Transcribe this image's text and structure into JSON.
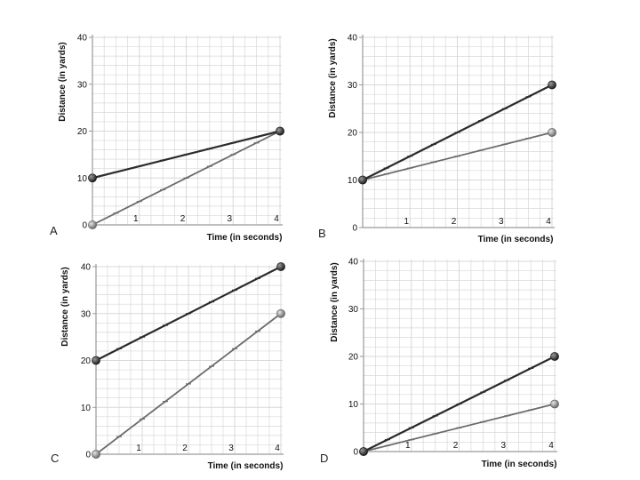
{
  "colors": {
    "grid": "#d8d8d8",
    "axis": "#9a9a9a",
    "dark_line": "#2b2b2b",
    "light_line": "#6b6b6b",
    "text": "#111111"
  },
  "chart_data": [
    {
      "panel_label": "A",
      "type": "line",
      "xlabel": "Time (in seconds)",
      "ylabel": "Distance (in yards)",
      "xlim": [
        0,
        4
      ],
      "ylim": [
        0,
        40
      ],
      "xticks": [
        "1",
        "2",
        "3",
        "4"
      ],
      "yticks": [
        "0",
        "10",
        "20",
        "30",
        "40"
      ],
      "series": [
        {
          "name": "dark",
          "tone": "dark",
          "x": [
            0,
            4
          ],
          "y": [
            10,
            20
          ]
        },
        {
          "name": "light",
          "tone": "light",
          "x": [
            0,
            4
          ],
          "y": [
            0,
            20
          ]
        }
      ]
    },
    {
      "panel_label": "B",
      "type": "line",
      "xlabel": "Time (in seconds)",
      "ylabel": "Distance (in yards)",
      "xlim": [
        0,
        4
      ],
      "ylim": [
        0,
        40
      ],
      "xticks": [
        "1",
        "2",
        "3",
        "4"
      ],
      "yticks": [
        "0",
        "10",
        "20",
        "30",
        "40"
      ],
      "series": [
        {
          "name": "dark",
          "tone": "dark",
          "x": [
            0,
            4
          ],
          "y": [
            10,
            30
          ]
        },
        {
          "name": "light",
          "tone": "light",
          "x": [
            0,
            4
          ],
          "y": [
            10,
            20
          ]
        }
      ]
    },
    {
      "panel_label": "C",
      "type": "line",
      "xlabel": "Time (in seconds)",
      "ylabel": "Distance (in yards)",
      "xlim": [
        0,
        4
      ],
      "ylim": [
        0,
        40
      ],
      "xticks": [
        "1",
        "2",
        "3",
        "4"
      ],
      "yticks": [
        "0",
        "10",
        "20",
        "30",
        "40"
      ],
      "series": [
        {
          "name": "dark",
          "tone": "dark",
          "x": [
            0,
            4
          ],
          "y": [
            20,
            40
          ]
        },
        {
          "name": "light",
          "tone": "light",
          "x": [
            0,
            4
          ],
          "y": [
            0,
            30
          ]
        }
      ]
    },
    {
      "panel_label": "D",
      "type": "line",
      "xlabel": "Time (in seconds)",
      "ylabel": "Distance (in yards)",
      "xlim": [
        0,
        4
      ],
      "ylim": [
        0,
        40
      ],
      "xticks": [
        "1",
        "2",
        "3",
        "4"
      ],
      "yticks": [
        "0",
        "10",
        "20",
        "30",
        "40"
      ],
      "series": [
        {
          "name": "dark",
          "tone": "dark",
          "x": [
            0,
            4
          ],
          "y": [
            0,
            20
          ]
        },
        {
          "name": "light",
          "tone": "light",
          "x": [
            0,
            4
          ],
          "y": [
            0,
            10
          ]
        }
      ]
    }
  ]
}
